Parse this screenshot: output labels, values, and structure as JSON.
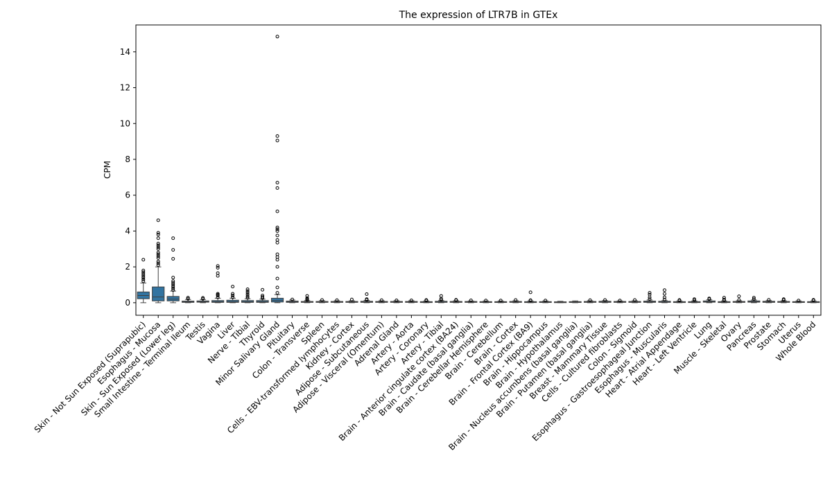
{
  "chart_data": {
    "type": "box",
    "title": "The expression of LTR7B in GTEx",
    "ylabel": "CPM",
    "xlabel": "",
    "ylim": [
      -0.7,
      15.5
    ],
    "yticks": [
      0,
      2,
      4,
      6,
      8,
      10,
      12,
      14
    ],
    "grid": false,
    "box_color": "#3274a1",
    "categories": [
      "Skin - Not Sun Exposed (Suprapubic)",
      "Esophagus - Mucosa",
      "Skin - Sun Exposed (Lower leg)",
      "Small Intestine - Terminal Ileum",
      "Testis",
      "Vagina",
      "Liver",
      "Nerve - Tibial",
      "Thyroid",
      "Minor Salivary Gland",
      "Pituitary",
      "Colon - Transverse",
      "Spleen",
      "Cells - EBV-transformed lymphocytes",
      "Kidney - Cortex",
      "Adipose - Subcutaneous",
      "Adipose - Visceral (Omentum)",
      "Adrenal Gland",
      "Artery - Aorta",
      "Artery - Coronary",
      "Artery - Tibial",
      "Brain - Anterior cingulate cortex (BA24)",
      "Brain - Caudate (basal ganglia)",
      "Brain - Cerebellar Hemisphere",
      "Brain - Cerebellum",
      "Brain - Cortex",
      "Brain - Frontal Cortex (BA9)",
      "Brain - Hippocampus",
      "Brain - Hypothalamus",
      "Brain - Nucleus accumbens (basal ganglia)",
      "Brain - Putamen (basal ganglia)",
      "Breast - Mammary Tissue",
      "Cells - Cultured fibroblasts",
      "Colon - Sigmoid",
      "Esophagus - Gastroesophageal Junction",
      "Esophagus - Muscularis",
      "Heart - Atrial Appendage",
      "Heart - Left Ventricle",
      "Lung",
      "Muscle - Skeletal",
      "Ovary",
      "Pancreas",
      "Prostate",
      "Stomach",
      "Uterus",
      "Whole Blood"
    ],
    "boxes": [
      {
        "q1": 0.22,
        "median": 0.4,
        "q3": 0.6,
        "whislo": 0.0,
        "whishi": 1.1,
        "fliers": [
          1.2,
          1.3,
          1.4,
          1.5,
          1.6,
          1.7,
          1.8,
          2.4
        ]
      },
      {
        "q1": 0.1,
        "median": 0.32,
        "q3": 0.88,
        "whislo": 0.0,
        "whishi": 2.0,
        "fliers": [
          2.1,
          2.2,
          2.3,
          2.5,
          2.6,
          2.7,
          2.8,
          3.0,
          3.1,
          3.2,
          3.3,
          3.6,
          3.8,
          3.9,
          4.6
        ]
      },
      {
        "q1": 0.1,
        "median": 0.2,
        "q3": 0.35,
        "whislo": 0.0,
        "whishi": 0.65,
        "fliers": [
          0.7,
          0.8,
          0.9,
          1.0,
          1.1,
          1.2,
          1.4,
          2.45,
          2.95,
          3.6
        ]
      },
      {
        "q1": 0.02,
        "median": 0.05,
        "q3": 0.09,
        "whislo": 0.0,
        "whishi": 0.18,
        "fliers": [
          0.22,
          0.28
        ]
      },
      {
        "q1": 0.03,
        "median": 0.06,
        "q3": 0.1,
        "whislo": 0.0,
        "whishi": 0.18,
        "fliers": [
          0.22,
          0.27
        ]
      },
      {
        "q1": 0.02,
        "median": 0.06,
        "q3": 0.12,
        "whislo": 0.0,
        "whishi": 0.25,
        "fliers": [
          0.3,
          0.4,
          0.45,
          0.5,
          1.5,
          1.65,
          1.95,
          2.05
        ]
      },
      {
        "q1": 0.02,
        "median": 0.06,
        "q3": 0.14,
        "whislo": 0.0,
        "whishi": 0.25,
        "fliers": [
          0.3,
          0.4,
          0.5,
          0.9
        ]
      },
      {
        "q1": 0.02,
        "median": 0.06,
        "q3": 0.12,
        "whislo": 0.0,
        "whishi": 0.22,
        "fliers": [
          0.27,
          0.35,
          0.45,
          0.55,
          0.65,
          0.75
        ]
      },
      {
        "q1": 0.02,
        "median": 0.06,
        "q3": 0.12,
        "whislo": 0.0,
        "whishi": 0.2,
        "fliers": [
          0.25,
          0.32,
          0.4,
          0.72
        ]
      },
      {
        "q1": 0.04,
        "median": 0.12,
        "q3": 0.25,
        "whislo": 0.0,
        "whishi": 0.45,
        "fliers": [
          0.55,
          0.85,
          1.35,
          2.0,
          2.4,
          2.55,
          2.7,
          3.35,
          3.5,
          3.75,
          4.0,
          4.1,
          4.2,
          5.1,
          6.4,
          6.7,
          9.05,
          9.3,
          14.85
        ]
      },
      {
        "q1": 0.02,
        "median": 0.05,
        "q3": 0.09,
        "whislo": 0.0,
        "whishi": 0.15,
        "fliers": [
          0.18
        ]
      },
      {
        "q1": 0.02,
        "median": 0.04,
        "q3": 0.07,
        "whislo": 0.0,
        "whishi": 0.12,
        "fliers": [
          0.15,
          0.2,
          0.25,
          0.38
        ]
      },
      {
        "q1": 0.02,
        "median": 0.04,
        "q3": 0.07,
        "whislo": 0.0,
        "whishi": 0.12,
        "fliers": [
          0.15
        ]
      },
      {
        "q1": 0.02,
        "median": 0.04,
        "q3": 0.07,
        "whislo": 0.0,
        "whishi": 0.11,
        "fliers": [
          0.14
        ]
      },
      {
        "q1": 0.02,
        "median": 0.04,
        "q3": 0.07,
        "whislo": 0.0,
        "whishi": 0.11,
        "fliers": [
          0.18
        ]
      },
      {
        "q1": 0.02,
        "median": 0.05,
        "q3": 0.08,
        "whislo": 0.0,
        "whishi": 0.13,
        "fliers": [
          0.16,
          0.2,
          0.48
        ]
      },
      {
        "q1": 0.02,
        "median": 0.04,
        "q3": 0.07,
        "whislo": 0.0,
        "whishi": 0.11,
        "fliers": [
          0.14
        ]
      },
      {
        "q1": 0.02,
        "median": 0.04,
        "q3": 0.07,
        "whislo": 0.0,
        "whishi": 0.11,
        "fliers": [
          0.13
        ]
      },
      {
        "q1": 0.02,
        "median": 0.04,
        "q3": 0.07,
        "whislo": 0.0,
        "whishi": 0.11,
        "fliers": [
          0.13
        ]
      },
      {
        "q1": 0.01,
        "median": 0.03,
        "q3": 0.06,
        "whislo": 0.0,
        "whishi": 0.1,
        "fliers": [
          0.12,
          0.15
        ]
      },
      {
        "q1": 0.02,
        "median": 0.04,
        "q3": 0.08,
        "whislo": 0.0,
        "whishi": 0.12,
        "fliers": [
          0.16,
          0.22,
          0.38
        ]
      },
      {
        "q1": 0.02,
        "median": 0.04,
        "q3": 0.07,
        "whislo": 0.0,
        "whishi": 0.11,
        "fliers": [
          0.14,
          0.16
        ]
      },
      {
        "q1": 0.02,
        "median": 0.04,
        "q3": 0.07,
        "whislo": 0.0,
        "whishi": 0.1,
        "fliers": [
          0.13
        ]
      },
      {
        "q1": 0.02,
        "median": 0.04,
        "q3": 0.06,
        "whislo": 0.0,
        "whishi": 0.1,
        "fliers": [
          0.12
        ]
      },
      {
        "q1": 0.02,
        "median": 0.04,
        "q3": 0.06,
        "whislo": 0.0,
        "whishi": 0.1,
        "fliers": [
          0.12
        ]
      },
      {
        "q1": 0.02,
        "median": 0.04,
        "q3": 0.07,
        "whislo": 0.0,
        "whishi": 0.11,
        "fliers": [
          0.15
        ]
      },
      {
        "q1": 0.01,
        "median": 0.03,
        "q3": 0.06,
        "whislo": 0.0,
        "whishi": 0.1,
        "fliers": [
          0.12,
          0.14,
          0.58
        ]
      },
      {
        "q1": 0.02,
        "median": 0.04,
        "q3": 0.06,
        "whislo": 0.0,
        "whishi": 0.1,
        "fliers": [
          0.12
        ]
      },
      {
        "q1": 0.01,
        "median": 0.03,
        "q3": 0.05,
        "whislo": 0.0,
        "whishi": 0.08,
        "fliers": []
      },
      {
        "q1": 0.02,
        "median": 0.04,
        "q3": 0.06,
        "whislo": 0.0,
        "whishi": 0.1,
        "fliers": []
      },
      {
        "q1": 0.02,
        "median": 0.04,
        "q3": 0.07,
        "whislo": 0.0,
        "whishi": 0.11,
        "fliers": [
          0.14
        ]
      },
      {
        "q1": 0.02,
        "median": 0.05,
        "q3": 0.08,
        "whislo": 0.0,
        "whishi": 0.12,
        "fliers": [
          0.15
        ]
      },
      {
        "q1": 0.02,
        "median": 0.04,
        "q3": 0.07,
        "whislo": 0.0,
        "whishi": 0.1,
        "fliers": [
          0.12
        ]
      },
      {
        "q1": 0.02,
        "median": 0.04,
        "q3": 0.07,
        "whislo": 0.0,
        "whishi": 0.11,
        "fliers": [
          0.15
        ]
      },
      {
        "q1": 0.02,
        "median": 0.05,
        "q3": 0.09,
        "whislo": 0.0,
        "whishi": 0.15,
        "fliers": [
          0.2,
          0.3,
          0.45,
          0.55
        ]
      },
      {
        "q1": 0.02,
        "median": 0.04,
        "q3": 0.08,
        "whislo": 0.0,
        "whishi": 0.12,
        "fliers": [
          0.18,
          0.3,
          0.5,
          0.7
        ]
      },
      {
        "q1": 0.01,
        "median": 0.03,
        "q3": 0.06,
        "whislo": 0.0,
        "whishi": 0.1,
        "fliers": [
          0.12,
          0.15
        ]
      },
      {
        "q1": 0.01,
        "median": 0.03,
        "q3": 0.06,
        "whislo": 0.0,
        "whishi": 0.1,
        "fliers": [
          0.14,
          0.2
        ]
      },
      {
        "q1": 0.03,
        "median": 0.06,
        "q3": 0.1,
        "whislo": 0.0,
        "whishi": 0.16,
        "fliers": [
          0.2,
          0.24
        ]
      },
      {
        "q1": 0.01,
        "median": 0.03,
        "q3": 0.06,
        "whislo": 0.0,
        "whishi": 0.1,
        "fliers": [
          0.13,
          0.18,
          0.28
        ]
      },
      {
        "q1": 0.02,
        "median": 0.04,
        "q3": 0.07,
        "whislo": 0.0,
        "whishi": 0.11,
        "fliers": [
          0.15,
          0.36
        ]
      },
      {
        "q1": 0.03,
        "median": 0.06,
        "q3": 0.1,
        "whislo": 0.0,
        "whishi": 0.15,
        "fliers": [
          0.2,
          0.28
        ]
      },
      {
        "q1": 0.02,
        "median": 0.05,
        "q3": 0.08,
        "whislo": 0.0,
        "whishi": 0.12,
        "fliers": [
          0.16
        ]
      },
      {
        "q1": 0.02,
        "median": 0.04,
        "q3": 0.07,
        "whislo": 0.0,
        "whishi": 0.11,
        "fliers": [
          0.15,
          0.2
        ]
      },
      {
        "q1": 0.02,
        "median": 0.04,
        "q3": 0.06,
        "whislo": 0.0,
        "whishi": 0.1,
        "fliers": [
          0.12
        ]
      },
      {
        "q1": 0.01,
        "median": 0.03,
        "q3": 0.06,
        "whislo": 0.0,
        "whishi": 0.1,
        "fliers": [
          0.13,
          0.16
        ]
      }
    ]
  }
}
